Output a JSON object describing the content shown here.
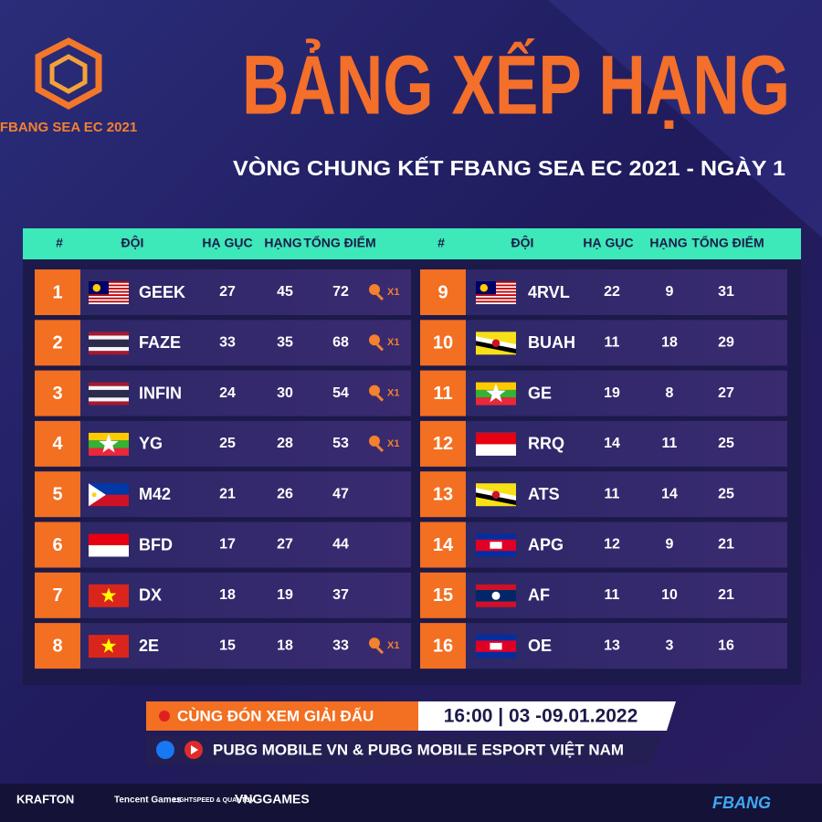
{
  "header": {
    "logo_text": "FBANG SEA EC 2021",
    "title": "BẢNG XẾP HẠNG",
    "subtitle": "VÒNG CHUNG KẾT FBANG SEA EC 2021 - NGÀY 1"
  },
  "tables": [
    {
      "columns": [
        "#",
        "ĐỘI",
        "HẠ GỤC",
        "HẠNG",
        "TỔNG ĐIỂM"
      ],
      "rows": [
        {
          "rank": 1,
          "team": "GEEK",
          "kills": 27,
          "place": 45,
          "total": 72,
          "flag": "my",
          "badge": "X1"
        },
        {
          "rank": 2,
          "team": "FAZE",
          "kills": 33,
          "place": 35,
          "total": 68,
          "flag": "th",
          "badge": "X1"
        },
        {
          "rank": 3,
          "team": "INFIN",
          "kills": 24,
          "place": 30,
          "total": 54,
          "flag": "th",
          "badge": "X1"
        },
        {
          "rank": 4,
          "team": "YG",
          "kills": 25,
          "place": 28,
          "total": 53,
          "flag": "mm",
          "badge": "X1"
        },
        {
          "rank": 5,
          "team": "M42",
          "kills": 21,
          "place": 26,
          "total": 47,
          "flag": "ph"
        },
        {
          "rank": 6,
          "team": "BFD",
          "kills": 17,
          "place": 27,
          "total": 44,
          "flag": "id"
        },
        {
          "rank": 7,
          "team": "DX",
          "kills": 18,
          "place": 19,
          "total": 37,
          "flag": "vn"
        },
        {
          "rank": 8,
          "team": "2E",
          "kills": 15,
          "place": 18,
          "total": 33,
          "flag": "vn",
          "badge": "X1"
        }
      ]
    },
    {
      "columns": [
        "#",
        "ĐỘI",
        "HẠ GỤC",
        "HẠNG",
        "TỔNG ĐIỂM"
      ],
      "rows": [
        {
          "rank": 9,
          "team": "4RVL",
          "kills": 22,
          "place": 9,
          "total": 31,
          "flag": "my"
        },
        {
          "rank": 10,
          "team": "BUAH",
          "kills": 11,
          "place": 18,
          "total": 29,
          "flag": "bn"
        },
        {
          "rank": 11,
          "team": "GE",
          "kills": 19,
          "place": 8,
          "total": 27,
          "flag": "mm"
        },
        {
          "rank": 12,
          "team": "RRQ",
          "kills": 14,
          "place": 11,
          "total": 25,
          "flag": "id"
        },
        {
          "rank": 13,
          "team": "ATS",
          "kills": 11,
          "place": 14,
          "total": 25,
          "flag": "bn"
        },
        {
          "rank": 14,
          "team": "APG",
          "kills": 12,
          "place": 9,
          "total": 21,
          "flag": "kh"
        },
        {
          "rank": 15,
          "team": "AF",
          "kills": 11,
          "place": 10,
          "total": 21,
          "flag": "la"
        },
        {
          "rank": 16,
          "team": "OE",
          "kills": 13,
          "place": 3,
          "total": 16,
          "flag": "kh"
        }
      ]
    }
  ],
  "footer": {
    "watch_label": "CÙNG ĐÓN XEM GIẢI ĐẤU",
    "schedule": "16:00 | 03 -09.01.2022",
    "channels": "PUBG MOBILE VN & PUBG MOBILE ESPORT VIỆT NAM",
    "sponsors": [
      "KRAFTON",
      "Tencent Games",
      "LIGHTSPEED & QUANTUM",
      "VNGGAMES"
    ],
    "brand": "FBANG"
  }
}
